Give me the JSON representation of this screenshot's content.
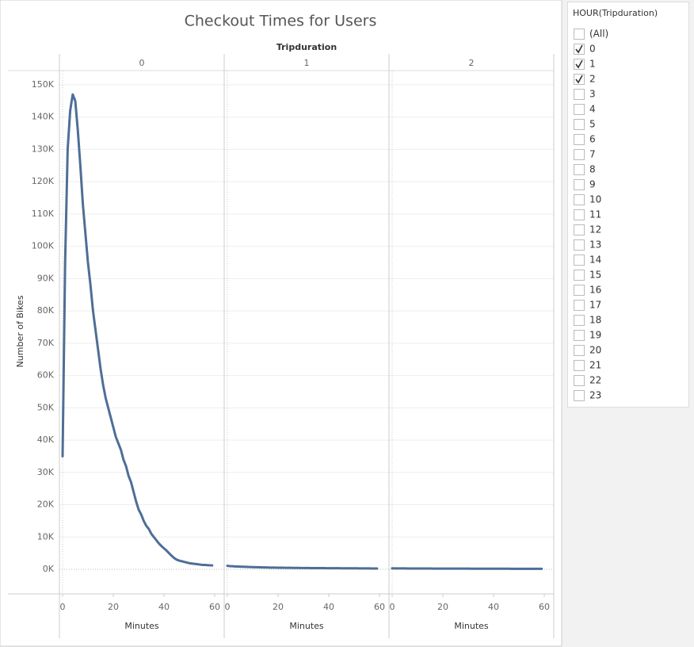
{
  "chart_data": {
    "type": "line",
    "title": "Checkout Times for Users",
    "column_header": "Tripduration",
    "x_label": "Minutes",
    "y_label": "Number of Bikes",
    "color": "#4e6e96",
    "grid": true,
    "xlim": [
      -1.25,
      63.75
    ],
    "xticks": [
      0,
      20,
      40,
      60
    ],
    "ylim": [
      -7600,
      154400
    ],
    "yticks": [
      {
        "value": 0,
        "label": "0K"
      },
      {
        "value": 10000,
        "label": "10K"
      },
      {
        "value": 20000,
        "label": "20K"
      },
      {
        "value": 30000,
        "label": "30K"
      },
      {
        "value": 40000,
        "label": "40K"
      },
      {
        "value": 50000,
        "label": "50K"
      },
      {
        "value": 60000,
        "label": "60K"
      },
      {
        "value": 70000,
        "label": "70K"
      },
      {
        "value": 80000,
        "label": "80K"
      },
      {
        "value": 90000,
        "label": "90K"
      },
      {
        "value": 100000,
        "label": "100K"
      },
      {
        "value": 110000,
        "label": "110K"
      },
      {
        "value": 120000,
        "label": "120K"
      },
      {
        "value": 130000,
        "label": "130K"
      },
      {
        "value": 140000,
        "label": "140K"
      },
      {
        "value": 150000,
        "label": "150K"
      }
    ],
    "x": [
      0,
      1,
      2,
      3,
      4,
      5,
      6,
      7,
      8,
      9,
      10,
      11,
      12,
      13,
      14,
      15,
      16,
      17,
      18,
      19,
      20,
      21,
      22,
      23,
      24,
      25,
      26,
      27,
      28,
      29,
      30,
      31,
      32,
      33,
      34,
      35,
      36,
      37,
      38,
      39,
      40,
      41,
      42,
      43,
      44,
      45,
      46,
      47,
      48,
      49,
      50,
      51,
      52,
      53,
      54,
      55,
      56,
      57,
      58,
      59
    ],
    "panels": [
      {
        "label": "0",
        "values": [
          35000,
          95000,
          130000,
          142000,
          147000,
          145000,
          136000,
          125000,
          113000,
          104000,
          95000,
          88000,
          80000,
          74000,
          68000,
          62000,
          57000,
          53000,
          50000,
          47000,
          44000,
          41000,
          39000,
          37000,
          34000,
          32000,
          29000,
          27000,
          24000,
          21000,
          18500,
          17000,
          15000,
          13500,
          12500,
          11000,
          10000,
          9000,
          8000,
          7200,
          6500,
          5800,
          5000,
          4200,
          3500,
          3000,
          2700,
          2500,
          2300,
          2100,
          1900,
          1800,
          1700,
          1600,
          1500,
          1400,
          1350,
          1300,
          1250,
          1200
        ]
      },
      {
        "label": "1",
        "values": [
          1100,
          1000,
          950,
          900,
          870,
          840,
          800,
          770,
          740,
          710,
          680,
          660,
          640,
          620,
          600,
          580,
          560,
          540,
          530,
          520,
          510,
          500,
          490,
          480,
          470,
          460,
          450,
          440,
          430,
          420,
          410,
          400,
          395,
          390,
          385,
          380,
          375,
          370,
          365,
          360,
          355,
          350,
          345,
          340,
          335,
          330,
          325,
          320,
          315,
          310,
          305,
          300,
          295,
          290,
          285,
          280,
          275,
          270,
          265,
          260
        ]
      },
      {
        "label": "2",
        "values": [
          300,
          295,
          290,
          285,
          280,
          275,
          270,
          265,
          260,
          255,
          250,
          248,
          246,
          244,
          242,
          240,
          238,
          236,
          234,
          232,
          230,
          228,
          226,
          224,
          222,
          220,
          218,
          216,
          214,
          212,
          210,
          208,
          206,
          204,
          202,
          200,
          198,
          196,
          194,
          192,
          190,
          188,
          186,
          184,
          182,
          180,
          178,
          176,
          174,
          172,
          170,
          168,
          166,
          164,
          162,
          160,
          158,
          156,
          154,
          152
        ]
      }
    ]
  },
  "filter": {
    "title": "HOUR(Tripduration)",
    "items": [
      {
        "label": "(All)",
        "checked": false
      },
      {
        "label": "0",
        "checked": true
      },
      {
        "label": "1",
        "checked": true
      },
      {
        "label": "2",
        "checked": true
      },
      {
        "label": "3",
        "checked": false
      },
      {
        "label": "4",
        "checked": false
      },
      {
        "label": "5",
        "checked": false
      },
      {
        "label": "6",
        "checked": false
      },
      {
        "label": "7",
        "checked": false
      },
      {
        "label": "8",
        "checked": false
      },
      {
        "label": "9",
        "checked": false
      },
      {
        "label": "10",
        "checked": false
      },
      {
        "label": "11",
        "checked": false
      },
      {
        "label": "12",
        "checked": false
      },
      {
        "label": "13",
        "checked": false
      },
      {
        "label": "14",
        "checked": false
      },
      {
        "label": "15",
        "checked": false
      },
      {
        "label": "16",
        "checked": false
      },
      {
        "label": "17",
        "checked": false
      },
      {
        "label": "18",
        "checked": false
      },
      {
        "label": "19",
        "checked": false
      },
      {
        "label": "20",
        "checked": false
      },
      {
        "label": "21",
        "checked": false
      },
      {
        "label": "22",
        "checked": false
      },
      {
        "label": "23",
        "checked": false
      }
    ]
  }
}
